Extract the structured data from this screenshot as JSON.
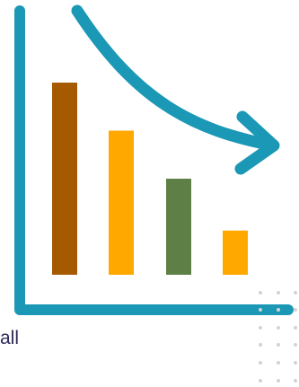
{
  "caption_fragment": "all",
  "colors": {
    "axis": "#1b98b5",
    "arrow": "#1b98b5",
    "dots": "#d3d3d3",
    "caption": "#2e2a5a"
  },
  "chart_data": {
    "type": "bar",
    "title": "",
    "xlabel": "",
    "ylabel": "",
    "categories": [
      "",
      "",
      "",
      ""
    ],
    "values": [
      10,
      7.5,
      5,
      2.3
    ],
    "ylim": [
      0,
      11
    ],
    "grid": false,
    "legend": "none",
    "bar_colors": [
      "#a65a00",
      "#ffa800",
      "#5e7f46",
      "#ffa800"
    ],
    "trend": "decreasing",
    "trend_arrow": "down-right"
  }
}
